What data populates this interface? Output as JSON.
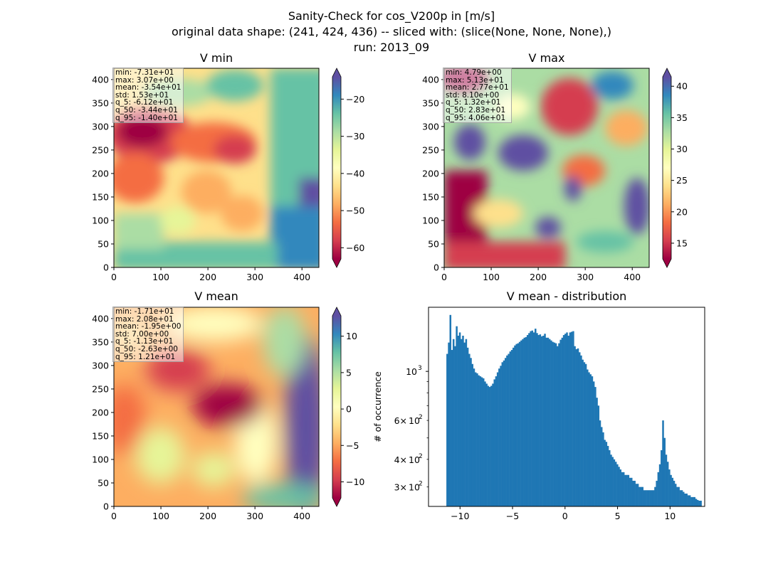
{
  "figure": {
    "title_lines": [
      "Sanity-Check for cos_V200p in [m/s]",
      "original data shape: (241, 424, 436) -- sliced with: (slice(None, None, None),)",
      "run: 2013_09"
    ]
  },
  "panels": {
    "vmin": {
      "title": "V min",
      "stats": [
        "min: -7.31e+01",
        "max: 3.07e+00",
        "mean: -3.54e+01",
        "std: 1.53e+01",
        "q_5: -6.12e+01",
        "q_50: -3.44e+01",
        "q_95: -1.40e+01"
      ],
      "colorbar": {
        "range": [
          -63,
          -14
        ],
        "ticks": [
          "-20",
          "-30",
          "-40",
          "-50",
          "-60"
        ],
        "tick_values": [
          -20,
          -30,
          -40,
          -50,
          -60
        ],
        "extend": "both",
        "colormap": "Spectral"
      }
    },
    "vmax": {
      "title": "V max",
      "stats": [
        "min: 4.79e+00",
        "max: 5.13e+01",
        "mean: 2.77e+01",
        "std: 8.10e+00",
        "q_5: 1.32e+01",
        "q_50: 2.83e+01",
        "q_95: 4.06e+01"
      ],
      "colorbar": {
        "range": [
          12.5,
          41.5
        ],
        "ticks": [
          "40",
          "35",
          "30",
          "25",
          "20",
          "15"
        ],
        "tick_values": [
          40,
          35,
          30,
          25,
          20,
          15
        ],
        "extend": "both",
        "colormap": "Spectral"
      }
    },
    "vmean": {
      "title": "V mean",
      "stats": [
        "min: -1.71e+01",
        "max: 2.08e+01",
        "mean: -1.95e+00",
        "std: 7.00e+00",
        "q_5: -1.13e+01",
        "q_50: -2.63e+00",
        "q_95: 1.21e+01"
      ],
      "colorbar": {
        "range": [
          -12.2,
          12.8
        ],
        "ticks": [
          "10",
          "5",
          "0",
          "-5",
          "-10"
        ],
        "tick_values": [
          10,
          5,
          0,
          -5,
          -10
        ],
        "extend": "both",
        "colormap": "Spectral"
      }
    },
    "map_axes": {
      "x_ticks": [
        "0",
        "100",
        "200",
        "300",
        "400"
      ],
      "x_tick_values": [
        0,
        100,
        200,
        300,
        400
      ],
      "x_range": [
        0,
        436
      ],
      "y_ticks": [
        "0",
        "50",
        "100",
        "150",
        "200",
        "250",
        "300",
        "350",
        "400"
      ],
      "y_tick_values": [
        0,
        50,
        100,
        150,
        200,
        250,
        300,
        350,
        400
      ],
      "y_range": [
        0,
        424
      ]
    }
  },
  "histogram": {
    "title": "V mean - distribution",
    "ylabel": "# of occurrence",
    "x_ticks": [
      "−10",
      "−5",
      "0",
      "5",
      "10"
    ],
    "x_tick_values": [
      -10,
      -5,
      0,
      5,
      10
    ],
    "y_ticks_major": [
      "10",
      "3"
    ],
    "y_ticks_minor_coeff": [
      "6",
      "4",
      "3"
    ],
    "y_major_values": [
      1000
    ],
    "y_minor_values": [
      600,
      400,
      300
    ],
    "bar_color": "#1f77b4"
  },
  "chart_data": [
    {
      "type": "heatmap",
      "title": "V min",
      "xlim": [
        0,
        436
      ],
      "ylim": [
        0,
        424
      ],
      "colorbar_range": [
        -63,
        -14
      ],
      "colormap": "Spectral"
    },
    {
      "type": "heatmap",
      "title": "V max",
      "xlim": [
        0,
        436
      ],
      "ylim": [
        0,
        424
      ],
      "colorbar_range": [
        12.5,
        41.5
      ],
      "colormap": "Spectral"
    },
    {
      "type": "heatmap",
      "title": "V mean",
      "xlim": [
        0,
        436
      ],
      "ylim": [
        0,
        424
      ],
      "colorbar_range": [
        -12.2,
        12.8
      ],
      "colormap": "Spectral"
    },
    {
      "type": "bar",
      "title": "V mean - distribution",
      "xlabel": "",
      "ylabel": "# of occurrence",
      "y_scale": "log",
      "xlim": [
        -13.0,
        13.3
      ],
      "ylim": [
        245,
        1950
      ],
      "bin_start": -11.3,
      "bin_width": 0.15,
      "counts": [
        1200,
        1350,
        1800,
        1250,
        1400,
        1300,
        1600,
        1450,
        1500,
        1400,
        1450,
        1350,
        1400,
        1280,
        1200,
        1150,
        1080,
        1030,
        990,
        980,
        960,
        950,
        940,
        930,
        900,
        880,
        860,
        850,
        860,
        880,
        920,
        950,
        990,
        1030,
        1060,
        1100,
        1120,
        1150,
        1180,
        1200,
        1230,
        1250,
        1280,
        1310,
        1330,
        1340,
        1360,
        1380,
        1400,
        1420,
        1430,
        1460,
        1490,
        1520,
        1530,
        1500,
        1560,
        1490,
        1460,
        1470,
        1440,
        1450,
        1480,
        1420,
        1420,
        1400,
        1380,
        1360,
        1350,
        1340,
        1300,
        1340,
        1390,
        1420,
        1460,
        1480,
        1500,
        1450,
        1500,
        1510,
        1520,
        1300,
        1260,
        1270,
        1220,
        1180,
        1130,
        1100,
        1080,
        1020,
        990,
        970,
        950,
        900,
        850,
        760,
        700,
        600,
        560,
        530,
        490,
        480,
        460,
        440,
        420,
        410,
        400,
        390,
        380,
        370,
        360,
        350,
        350,
        340,
        340,
        340,
        330,
        330,
        320,
        320,
        310,
        310,
        300,
        300,
        300,
        290,
        290,
        290,
        290,
        290,
        290,
        290,
        300,
        320,
        350,
        380,
        440,
        600,
        500,
        420,
        390,
        360,
        340,
        330,
        320,
        310,
        300,
        300,
        290,
        290,
        285,
        280,
        280,
        275,
        275,
        270,
        270,
        270,
        265,
        262,
        260,
        260
      ]
    }
  ]
}
